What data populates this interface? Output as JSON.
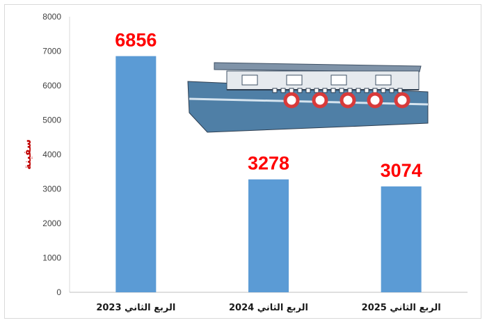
{
  "chart_data": {
    "type": "bar",
    "categories": [
      "الربع الثاني 2023",
      "الربع الثاني 2024",
      "الربع الثاني 2025"
    ],
    "values": [
      6856,
      3278,
      3074
    ],
    "data_labels": [
      "6856",
      "3278",
      "3074"
    ],
    "ylabel": "سفينة",
    "ylim": [
      0,
      8000
    ],
    "y_ticks": [
      "0",
      "1000",
      "2000",
      "3000",
      "4000",
      "5000",
      "6000",
      "7000",
      "8000"
    ],
    "grid": false,
    "bar_color": "#5B9BD5",
    "label_color": "#FF0000",
    "ylabel_color": "#C00000"
  },
  "decoration": {
    "icon": "ship-icon"
  }
}
